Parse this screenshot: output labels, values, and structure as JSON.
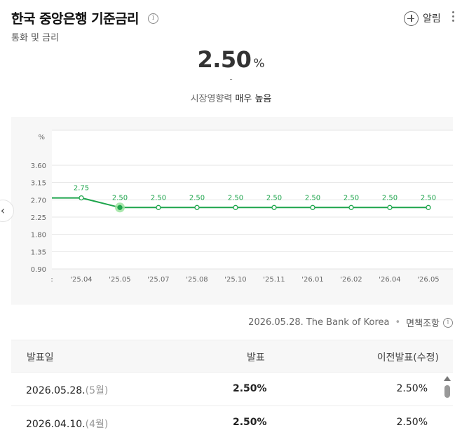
{
  "header": {
    "title": "한국 중앙은행 기준금리",
    "info_icon": "info-circle-icon",
    "subtitle": "통화 및 금리",
    "alert_label": "알림",
    "alert_icon": "plus-circle-icon",
    "more_icon": "vertical-dots-icon"
  },
  "summary": {
    "value": "2.50",
    "unit": "%",
    "change": "-",
    "impact_label": "시장영향력",
    "impact_value": "매우 높음"
  },
  "colors": {
    "line": "#1ea54c",
    "accent_point": "#9be39f",
    "grid": "#e6e6e6",
    "chart_bg": "#f7f7f7"
  },
  "chart_data": {
    "type": "line",
    "unit_label": "%",
    "y_ticks": [
      "3.60",
      "3.15",
      "2.70",
      "2.25",
      "1.80",
      "1.35",
      "0.90"
    ],
    "y_tick_values": [
      3.6,
      3.15,
      2.7,
      2.25,
      1.8,
      1.35,
      0.9
    ],
    "ylim": [
      0.9,
      3.6
    ],
    "x_first_tick": ":",
    "x": [
      "'25.04",
      "'25.05",
      "'25.07",
      "'25.08",
      "'25.10",
      "'25.11",
      "'26.01",
      "'26.02",
      "'26.04",
      "'26.05"
    ],
    "series": [
      {
        "values": [
          2.75,
          2.5,
          2.5,
          2.5,
          2.5,
          2.5,
          2.5,
          2.5,
          2.5,
          2.5
        ],
        "labels": [
          "2.75",
          "2.50",
          "2.50",
          "2.50",
          "2.50",
          "2.50",
          "2.50",
          "2.50",
          "2.50",
          "2.50"
        ]
      }
    ],
    "highlight_index": 1,
    "grid": true
  },
  "source": {
    "text": "2026.05.28. The Bank of Korea",
    "disclaimer": "면책조항",
    "info_icon": "info-circle-icon"
  },
  "table": {
    "headers": [
      "발표일",
      "발표",
      "이전발표(수정)"
    ],
    "rows": [
      {
        "date": "2026.05.28.",
        "month": "(5월)",
        "value": "2.50%",
        "previous": "2.50%"
      },
      {
        "date": "2026.04.10.",
        "month": "(4월)",
        "value": "2.50%",
        "previous": "2.50%"
      }
    ]
  }
}
